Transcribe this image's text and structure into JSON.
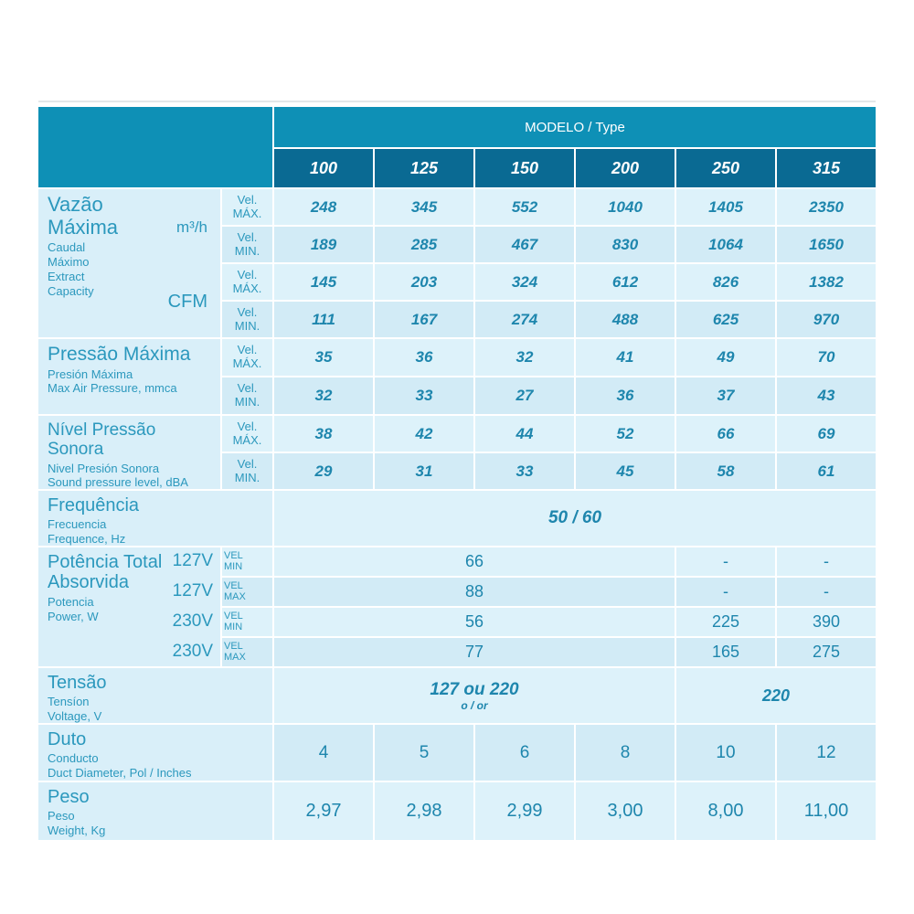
{
  "header": {
    "modelo_label": "MODELO / Type",
    "models": [
      "100",
      "125",
      "150",
      "200",
      "250",
      "315"
    ]
  },
  "vazao": {
    "title": "Vazão\nMáxima",
    "subtitle": "Caudal\nMáximo\nExtract\nCapacity",
    "unit_top": "m³/h",
    "unit_bottom": "CFM",
    "rows": [
      {
        "vel": "Vel.\nMÁX.",
        "values": [
          "248",
          "345",
          "552",
          "1040",
          "1405",
          "2350"
        ]
      },
      {
        "vel": "Vel.\nMIN.",
        "values": [
          "189",
          "285",
          "467",
          "830",
          "1064",
          "1650"
        ]
      },
      {
        "vel": "Vel.\nMÁX.",
        "values": [
          "145",
          "203",
          "324",
          "612",
          "826",
          "1382"
        ]
      },
      {
        "vel": "Vel.\nMIN.",
        "values": [
          "111",
          "167",
          "274",
          "488",
          "625",
          "970"
        ]
      }
    ]
  },
  "pressao": {
    "title": "Pressão Máxima",
    "subtitle": "Presión Máxima\nMax Air Pressure, mmca",
    "rows": [
      {
        "vel": "Vel.\nMÁX.",
        "values": [
          "35",
          "36",
          "32",
          "41",
          "49",
          "70"
        ]
      },
      {
        "vel": "Vel.\nMIN.",
        "values": [
          "32",
          "33",
          "27",
          "36",
          "37",
          "43"
        ]
      }
    ]
  },
  "nivel": {
    "title": "Nível Pressão Sonora",
    "subtitle": "Nivel Presión Sonora\nSound pressure level, dBA",
    "rows": [
      {
        "vel": "Vel.\nMÁX.",
        "values": [
          "38",
          "42",
          "44",
          "52",
          "66",
          "69"
        ]
      },
      {
        "vel": "Vel.\nMIN.",
        "values": [
          "29",
          "31",
          "33",
          "45",
          "58",
          "61"
        ]
      }
    ]
  },
  "frequencia": {
    "title": "Frequência",
    "subtitle": "Frecuencia\nFrequence, Hz",
    "value": "50 / 60"
  },
  "potencia": {
    "title": "Potência Total\nAbsorvida",
    "subtitle": "Potencia\nPower, W",
    "rows": [
      {
        "voltage": "127V",
        "vel": "VEL\nMIN",
        "shared": "66",
        "c250": "-",
        "c315": "-"
      },
      {
        "voltage": "127V",
        "vel": "VEL\nMAX",
        "shared": "88",
        "c250": "-",
        "c315": "-"
      },
      {
        "voltage": "230V",
        "vel": "VEL\nMIN",
        "shared": "56",
        "c250": "225",
        "c315": "390"
      },
      {
        "voltage": "230V",
        "vel": "VEL\nMAX",
        "shared": "77",
        "c250": "165",
        "c315": "275"
      }
    ]
  },
  "tensao": {
    "title": "Tensão",
    "subtitle": "Tensíon\nVoltage, V",
    "value_left": "127 ou 220",
    "value_left_sub": "o / or",
    "value_right": "220"
  },
  "duto": {
    "title": "Duto",
    "subtitle": "Conducto\nDuct Diameter, Pol / Inches",
    "values": [
      "4",
      "5",
      "6",
      "8",
      "10",
      "12"
    ]
  },
  "peso": {
    "title": "Peso",
    "subtitle": "Peso\nWeight, Kg",
    "values": [
      "2,97",
      "2,98",
      "2,99",
      "3,00",
      "8,00",
      "11,00"
    ]
  },
  "colors": {
    "header_teal": "#0e90b6",
    "model_band_blue": "#0a6a93",
    "row_light": "#ddf2fa",
    "row_dark": "#d2ebf6",
    "label_bg": "#d9eff9",
    "title_text": "#2b98bd",
    "value_text": "#1e86ad"
  }
}
